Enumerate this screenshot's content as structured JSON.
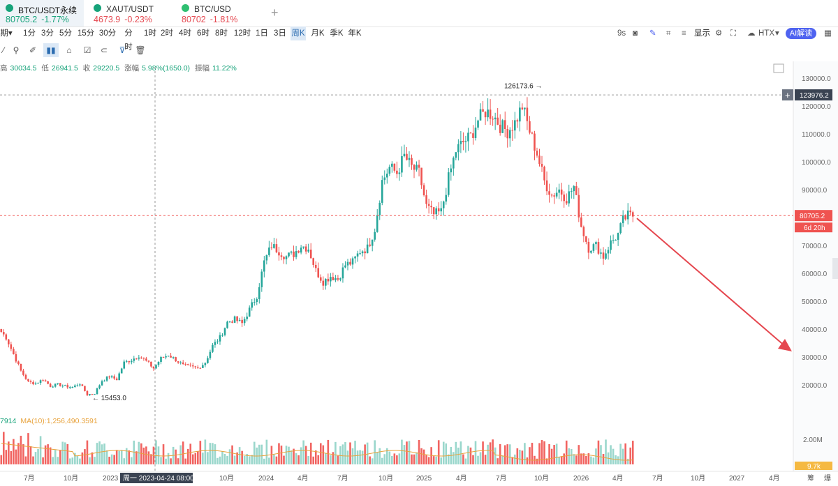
{
  "tabs": [
    {
      "symbol": "BTC/USDT永续",
      "price": "80705.2",
      "change": "-1.77%",
      "price_color": "green",
      "change_color": "green",
      "icon_color": "#17a37a"
    },
    {
      "symbol": "XAUT/USDT",
      "price": "4673.9",
      "change": "-0.23%",
      "price_color": "red",
      "change_color": "red",
      "icon_color": "#17a37a"
    },
    {
      "symbol": "BTC/USD",
      "price": "80702",
      "change": "-1.81%",
      "price_color": "red",
      "change_color": "red",
      "icon_color": "#2fbf71"
    }
  ],
  "add_tab": "+",
  "intervals": [
    "期▾",
    "1分",
    "3分",
    "5分",
    "15分",
    "30分",
    "分时",
    "1时",
    "2时",
    "4时",
    "6时",
    "8时",
    "12时",
    "1日",
    "3日",
    "周K",
    "月K",
    "季K",
    "年K"
  ],
  "selected_interval": "周K",
  "toolbar_right": {
    "countdown": "9s",
    "display": "显示",
    "exchange": "HTX",
    "ai_label": "AI解读"
  },
  "ohlc": {
    "high_label": "高",
    "high": "30034.5",
    "low_label": "低",
    "low": "26941.5",
    "close_label": "收",
    "close": "29220.5",
    "change_label": "涨幅",
    "change": "5.98%(1650.0)",
    "amp_label": "振幅",
    "amp": "11.22%"
  },
  "volume_legend": {
    "vol": "7914",
    "ma": "MA(10):1,256,490.3591"
  },
  "price_axis": {
    "ticks": [
      "130000.0",
      "120000.0",
      "110000.0",
      "100000.0",
      "90000.0",
      "80000.0",
      "70000.0",
      "60000.0",
      "50000.0",
      "40000.0",
      "30000.0",
      "20000.0"
    ],
    "crosshair_value": "123976.2",
    "last_price": "80705.2",
    "countdown": "6d 20h",
    "volume_tick": "2.00M",
    "volume_last": "9.7k"
  },
  "time_axis": {
    "labels": [
      "7月",
      "10月",
      "2023",
      "10月",
      "2024",
      "4月",
      "7月",
      "10月",
      "2025",
      "4月",
      "7月",
      "10月",
      "2026",
      "4月",
      "7月",
      "10月",
      "2027",
      "4月",
      "筹",
      "爆"
    ],
    "crosshair_label": "周一 2023-04-24 08:00"
  },
  "annotations": {
    "high": "126173.6",
    "low": "15453.0"
  },
  "colors": {
    "up": "#26a69a",
    "down": "#ef5350",
    "accent": "#2b6cb0",
    "volume_ma": "#e8a33d",
    "arrow": "#e5474f"
  },
  "chart_data": {
    "type": "candlestick",
    "title": "BTC/USDT永续 周K",
    "xlabel": "",
    "ylabel": "",
    "ylim": [
      13000,
      133000
    ],
    "x_range": [
      "2022-05",
      "2027-05"
    ],
    "key_points": [
      {
        "label": "low",
        "value": 15453.0,
        "date": "2022-11"
      },
      {
        "label": "high",
        "value": 126173.6,
        "date": "2025-10"
      },
      {
        "label": "last",
        "value": 80705.2,
        "date": "2026-05"
      }
    ],
    "path": [
      [
        0,
        40000
      ],
      [
        3,
        37000
      ],
      [
        6,
        31000
      ],
      [
        9,
        25000
      ],
      [
        12,
        21000
      ],
      [
        15,
        20500
      ],
      [
        18,
        22000
      ],
      [
        21,
        19600
      ],
      [
        24,
        20200
      ],
      [
        27,
        19500
      ],
      [
        30,
        19200
      ],
      [
        33,
        20500
      ],
      [
        36,
        16500
      ],
      [
        39,
        17000
      ],
      [
        42,
        21500
      ],
      [
        45,
        23000
      ],
      [
        48,
        22000
      ],
      [
        51,
        28000
      ],
      [
        54,
        29000
      ],
      [
        57,
        30500
      ],
      [
        60,
        28500
      ],
      [
        63,
        26000
      ],
      [
        66,
        29500
      ],
      [
        69,
        30800
      ],
      [
        72,
        29000
      ],
      [
        75,
        27000
      ],
      [
        78,
        26500
      ],
      [
        81,
        26000
      ],
      [
        84,
        28000
      ],
      [
        87,
        34000
      ],
      [
        90,
        37000
      ],
      [
        93,
        42500
      ],
      [
        96,
        43500
      ],
      [
        99,
        42000
      ],
      [
        102,
        47000
      ],
      [
        105,
        52000
      ],
      [
        108,
        64000
      ],
      [
        111,
        70000
      ],
      [
        114,
        68000
      ],
      [
        117,
        66000
      ],
      [
        120,
        67000
      ],
      [
        123,
        70000
      ],
      [
        126,
        69000
      ],
      [
        129,
        61000
      ],
      [
        132,
        57000
      ],
      [
        135,
        59000
      ],
      [
        138,
        58000
      ],
      [
        141,
        63000
      ],
      [
        144,
        64000
      ],
      [
        147,
        68000
      ],
      [
        150,
        69000
      ],
      [
        153,
        76000
      ],
      [
        156,
        93000
      ],
      [
        159,
        98000
      ],
      [
        162,
        96000
      ],
      [
        165,
        102000
      ],
      [
        168,
        98000
      ],
      [
        171,
        96000
      ],
      [
        174,
        84000
      ],
      [
        177,
        81000
      ],
      [
        180,
        82000
      ],
      [
        183,
        94000
      ],
      [
        186,
        104000
      ],
      [
        189,
        107000
      ],
      [
        192,
        109000
      ],
      [
        195,
        115000
      ],
      [
        198,
        118000
      ],
      [
        201,
        117000
      ],
      [
        204,
        113000
      ],
      [
        207,
        111000
      ],
      [
        210,
        114000
      ],
      [
        213,
        120000
      ],
      [
        216,
        111000
      ],
      [
        219,
        103000
      ],
      [
        222,
        93000
      ],
      [
        225,
        88000
      ],
      [
        228,
        90000
      ],
      [
        231,
        87000
      ],
      [
        234,
        91000
      ],
      [
        237,
        77000
      ],
      [
        240,
        69000
      ],
      [
        243,
        70000
      ],
      [
        246,
        66000
      ],
      [
        249,
        71000
      ],
      [
        252,
        74000
      ],
      [
        254,
        79000
      ],
      [
        256,
        80705
      ]
    ],
    "volume_ma_label": "MA(10)",
    "projection_arrow": {
      "from": "2026-05",
      "to": "2027-05",
      "target": 32000
    }
  }
}
